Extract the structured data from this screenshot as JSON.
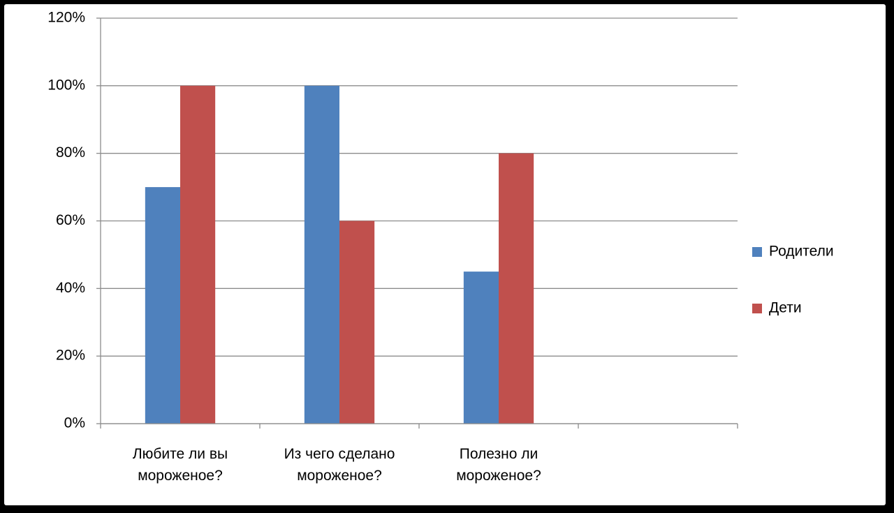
{
  "chart_data": {
    "type": "bar",
    "categories": [
      "Любите ли вы мороженое?",
      "Из чего сделано мороженое?",
      "Полезно ли мороженое?",
      null
    ],
    "series": [
      {
        "name": "Родители",
        "color": "#4f81bd",
        "values": [
          70,
          100,
          45,
          null
        ]
      },
      {
        "name": "Дети",
        "color": "#c0504d",
        "values": [
          100,
          60,
          80,
          null
        ]
      }
    ],
    "ylim": [
      0,
      120
    ],
    "yticks": [
      {
        "value": 0,
        "label": "0%"
      },
      {
        "value": 20,
        "label": "20%"
      },
      {
        "value": 40,
        "label": "40%"
      },
      {
        "value": 60,
        "label": "60%"
      },
      {
        "value": 80,
        "label": "80%"
      },
      {
        "value": 100,
        "label": "100%"
      },
      {
        "value": 120,
        "label": "120%"
      }
    ],
    "grid": true,
    "legend": "right"
  }
}
